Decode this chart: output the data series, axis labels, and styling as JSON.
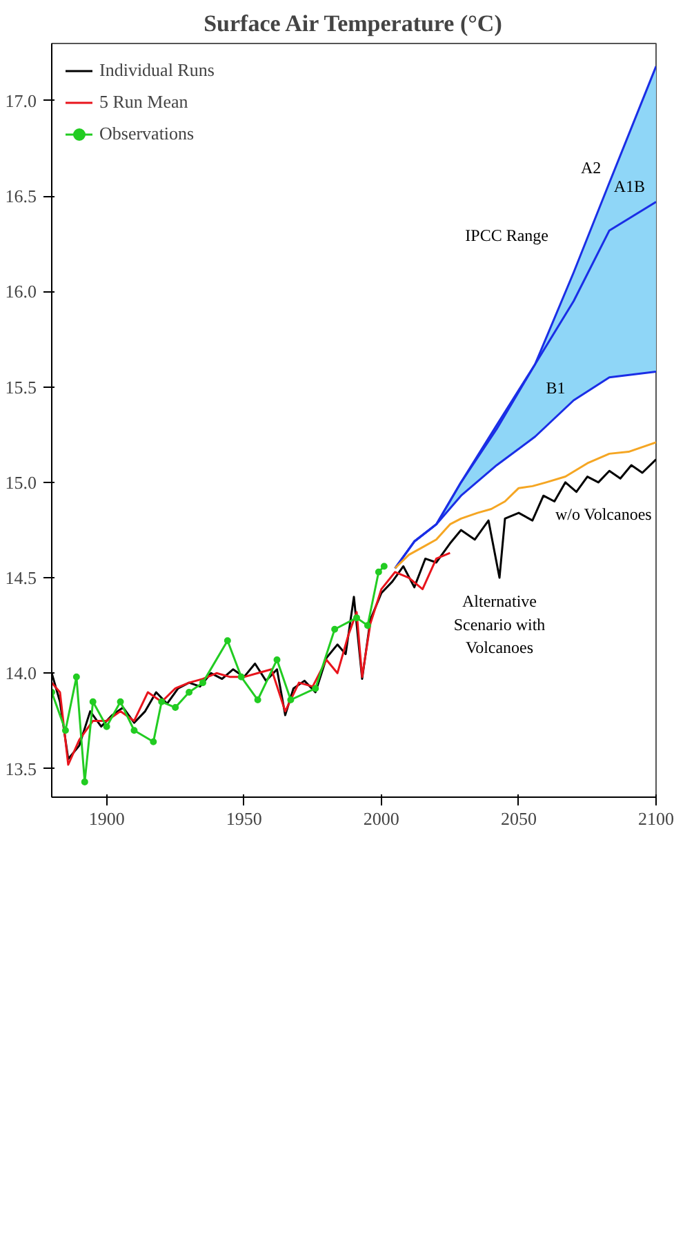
{
  "chart_data": {
    "type": "line",
    "title": "Surface Air Temperature (°C)",
    "xlim": [
      1880,
      2100
    ],
    "xticks": [
      1900,
      1950,
      2000,
      2050,
      2100
    ],
    "ylim": [
      13.35,
      17.3
    ],
    "yticks": [
      13.5,
      {
        "value": 14,
        "label": "14.0"
      },
      14.5,
      {
        "value": 15,
        "label": "15.0"
      },
      15.5,
      {
        "value": 16,
        "label": "16.0"
      },
      16.5,
      {
        "value": 17,
        "label": "17.0"
      }
    ],
    "grid": false,
    "legend": "top left",
    "marker": "none",
    "line_style": "solid",
    "series": [
      {
        "color": "#1a2ee6",
        "x": [
          2005,
          2012,
          2020,
          2029,
          2042,
          2056,
          2070,
          2083,
          2100
        ],
        "values": [
          14.55,
          14.69,
          14.78,
          15.0,
          15.28,
          15.62,
          15.95,
          16.32,
          16.47
        ],
        "lower": [
          14.55,
          14.69,
          14.78,
          14.93,
          15.09,
          15.24,
          15.43,
          15.55,
          15.58
        ],
        "upper": [
          14.55,
          14.69,
          14.78,
          15.0,
          15.3,
          15.62,
          16.1,
          16.57,
          17.18
        ]
      },
      {
        "color": "#1a2ee6",
        "x": [
          2005,
          2012,
          2020,
          2029,
          2042,
          2056,
          2070,
          2083,
          2100
        ],
        "values": [
          14.55,
          14.69,
          14.78,
          15.0,
          15.3,
          15.62,
          16.1,
          16.57,
          17.18
        ]
      },
      {
        "color": "#1a2ee6",
        "x": [
          2005,
          2012,
          2020,
          2029,
          2042,
          2056,
          2070,
          2083,
          2100
        ],
        "values": [
          14.55,
          14.69,
          14.78,
          14.93,
          15.09,
          15.24,
          15.43,
          15.55,
          15.58
        ]
      },
      {
        "color": "#f5a623",
        "x": [
          2005,
          2010,
          2015,
          2020,
          2025,
          2029,
          2035,
          2040,
          2045,
          2050,
          2055,
          2060,
          2067,
          2075,
          2083,
          2090,
          2100
        ],
        "values": [
          14.55,
          14.62,
          14.66,
          14.7,
          14.78,
          14.81,
          14.84,
          14.86,
          14.9,
          14.97,
          14.98,
          15.0,
          15.03,
          15.1,
          15.15,
          15.16,
          15.21
        ]
      },
      {
        "name": "Individual Runs",
        "color": "#000000",
        "x": [
          1880,
          1883,
          1886,
          1890,
          1894,
          1898,
          1902,
          1906,
          1910,
          1914,
          1918,
          1922,
          1926,
          1930,
          1934,
          1938,
          1942,
          1946,
          1950,
          1954,
          1958,
          1962,
          1965,
          1968,
          1972,
          1976,
          1980,
          1984,
          1987,
          1990,
          1993,
          1996,
          2000,
          2004,
          2008,
          2012,
          2016,
          2020,
          2025,
          2029,
          2034,
          2039,
          2043,
          2045,
          2050,
          2055,
          2059,
          2063,
          2067,
          2071,
          2075,
          2079,
          2083,
          2087,
          2091,
          2095,
          2100
        ],
        "values": [
          14.0,
          13.85,
          13.55,
          13.62,
          13.8,
          13.72,
          13.78,
          13.82,
          13.74,
          13.8,
          13.9,
          13.84,
          13.92,
          13.95,
          13.93,
          14.0,
          13.97,
          14.02,
          13.98,
          14.05,
          13.96,
          14.02,
          13.78,
          13.92,
          13.96,
          13.9,
          14.08,
          14.15,
          14.1,
          14.4,
          13.97,
          14.28,
          14.42,
          14.48,
          14.56,
          14.45,
          14.6,
          14.58,
          14.68,
          14.75,
          14.7,
          14.8,
          14.5,
          14.81,
          14.84,
          14.8,
          14.93,
          14.9,
          15.0,
          14.95,
          15.03,
          15.0,
          15.06,
          15.02,
          15.09,
          15.05,
          15.12
        ]
      },
      {
        "name": "5 Run Mean",
        "color": "#e8141c",
        "x": [
          1880,
          1883,
          1886,
          1890,
          1895,
          1900,
          1905,
          1910,
          1915,
          1920,
          1925,
          1930,
          1935,
          1940,
          1945,
          1950,
          1955,
          1960,
          1965,
          1970,
          1975,
          1980,
          1984,
          1988,
          1991,
          1993,
          1996,
          2000,
          2005,
          2010,
          2015,
          2020,
          2025
        ],
        "values": [
          13.95,
          13.9,
          13.52,
          13.65,
          13.75,
          13.75,
          13.8,
          13.75,
          13.9,
          13.85,
          13.92,
          13.95,
          13.97,
          14.0,
          13.98,
          13.98,
          14.0,
          14.02,
          13.8,
          13.95,
          13.93,
          14.07,
          14.0,
          14.2,
          14.32,
          13.98,
          14.26,
          14.44,
          14.53,
          14.5,
          14.44,
          14.6,
          14.63
        ]
      },
      {
        "name": "Observations",
        "color": "#22cc22",
        "marker": "circle",
        "x": [
          1880,
          1885,
          1889,
          1892,
          1895,
          1900,
          1905,
          1910,
          1917,
          1920,
          1925,
          1930,
          1935,
          1944,
          1949,
          1955,
          1962,
          1967,
          1976,
          1983,
          1991,
          1995,
          1999,
          2001
        ],
        "values": [
          13.9,
          13.7,
          13.98,
          13.43,
          13.85,
          13.72,
          13.85,
          13.7,
          13.64,
          13.85,
          13.82,
          13.9,
          13.95,
          14.17,
          13.98,
          13.86,
          14.07,
          13.86,
          13.92,
          14.23,
          14.29,
          14.25,
          14.53,
          14.56
        ]
      }
    ],
    "annotations": [
      {
        "text": "A2",
        "x": 2083,
        "y": 16.57
      },
      {
        "text": "A1B",
        "x": 2100,
        "y": 16.47
      },
      {
        "text": "B1",
        "x": 2070,
        "y": 15.43
      },
      "IPCC Range",
      "w/o Volcanoes",
      {
        "text": "Alternative Scenario with Volcanoes",
        "x": 2043,
        "y": 14.5
      }
    ]
  }
}
